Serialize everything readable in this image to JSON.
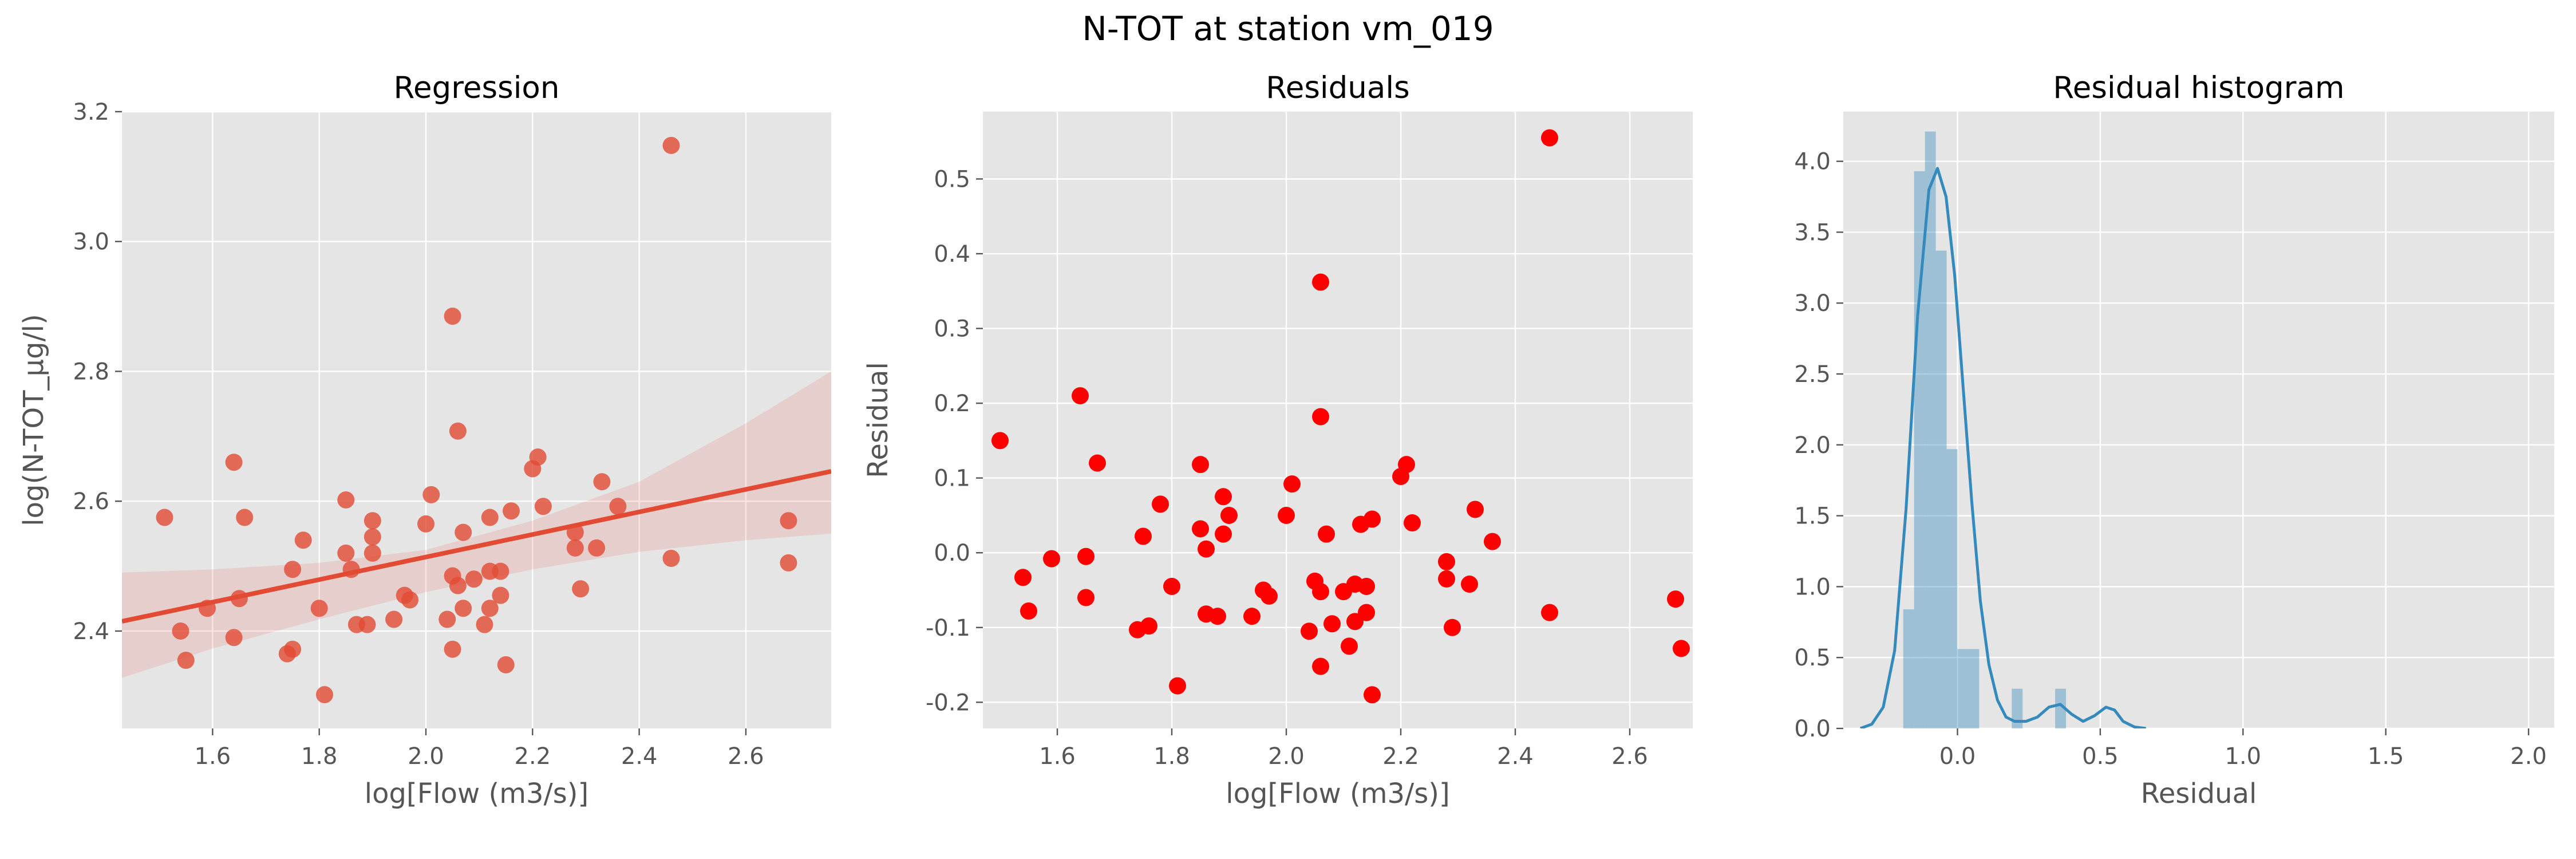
{
  "figure": {
    "title": "N-TOT at station vm_019"
  },
  "chart_data": [
    {
      "type": "scatter",
      "title": "Regression",
      "xlabel": "log[Flow (m3/s)]",
      "ylabel": "log(N-TOT_µg/l)",
      "xlim": [
        1.43,
        2.76
      ],
      "ylim": [
        2.25,
        3.2
      ],
      "xticks": [
        1.6,
        1.8,
        2.0,
        2.2,
        2.4,
        2.6
      ],
      "yticks": [
        2.4,
        2.6,
        2.8,
        3.0,
        3.2
      ],
      "grid": true,
      "colors": {
        "points": "#e24a33",
        "line": "#e24a33",
        "band": "#e24a33",
        "background": "#e5e5e5"
      },
      "regression_line": {
        "x": [
          1.43,
          2.76
        ],
        "y": [
          2.415,
          2.646
        ]
      },
      "confidence_band": {
        "x": [
          1.43,
          1.6,
          1.8,
          2.0,
          2.2,
          2.4,
          2.6,
          2.76
        ],
        "lower": [
          2.328,
          2.373,
          2.418,
          2.46,
          2.495,
          2.522,
          2.54,
          2.55
        ],
        "upper": [
          2.49,
          2.495,
          2.505,
          2.525,
          2.57,
          2.63,
          2.72,
          2.8
        ]
      },
      "points": [
        {
          "x": 1.51,
          "y": 2.575
        },
        {
          "x": 1.54,
          "y": 2.4
        },
        {
          "x": 1.55,
          "y": 2.355
        },
        {
          "x": 1.59,
          "y": 2.435
        },
        {
          "x": 1.64,
          "y": 2.66
        },
        {
          "x": 1.64,
          "y": 2.39
        },
        {
          "x": 1.66,
          "y": 2.575
        },
        {
          "x": 1.65,
          "y": 2.45
        },
        {
          "x": 1.74,
          "y": 2.365
        },
        {
          "x": 1.75,
          "y": 2.495
        },
        {
          "x": 1.75,
          "y": 2.372
        },
        {
          "x": 1.77,
          "y": 2.54
        },
        {
          "x": 1.8,
          "y": 2.435
        },
        {
          "x": 1.81,
          "y": 2.302
        },
        {
          "x": 1.85,
          "y": 2.52
        },
        {
          "x": 1.85,
          "y": 2.602
        },
        {
          "x": 1.86,
          "y": 2.495
        },
        {
          "x": 1.87,
          "y": 2.41
        },
        {
          "x": 1.89,
          "y": 2.41
        },
        {
          "x": 1.9,
          "y": 2.52
        },
        {
          "x": 1.9,
          "y": 2.545
        },
        {
          "x": 1.9,
          "y": 2.57
        },
        {
          "x": 1.94,
          "y": 2.418
        },
        {
          "x": 1.96,
          "y": 2.455
        },
        {
          "x": 1.97,
          "y": 2.448
        },
        {
          "x": 2.0,
          "y": 2.565
        },
        {
          "x": 2.01,
          "y": 2.61
        },
        {
          "x": 2.04,
          "y": 2.418
        },
        {
          "x": 2.05,
          "y": 2.372
        },
        {
          "x": 2.05,
          "y": 2.485
        },
        {
          "x": 2.06,
          "y": 2.47
        },
        {
          "x": 2.05,
          "y": 2.885
        },
        {
          "x": 2.06,
          "y": 2.708
        },
        {
          "x": 2.07,
          "y": 2.552
        },
        {
          "x": 2.07,
          "y": 2.435
        },
        {
          "x": 2.09,
          "y": 2.48
        },
        {
          "x": 2.11,
          "y": 2.41
        },
        {
          "x": 2.12,
          "y": 2.435
        },
        {
          "x": 2.12,
          "y": 2.492
        },
        {
          "x": 2.12,
          "y": 2.575
        },
        {
          "x": 2.14,
          "y": 2.455
        },
        {
          "x": 2.14,
          "y": 2.492
        },
        {
          "x": 2.15,
          "y": 2.348
        },
        {
          "x": 2.16,
          "y": 2.585
        },
        {
          "x": 2.2,
          "y": 2.65
        },
        {
          "x": 2.21,
          "y": 2.668
        },
        {
          "x": 2.22,
          "y": 2.592
        },
        {
          "x": 2.28,
          "y": 2.528
        },
        {
          "x": 2.28,
          "y": 2.552
        },
        {
          "x": 2.29,
          "y": 2.465
        },
        {
          "x": 2.32,
          "y": 2.528
        },
        {
          "x": 2.33,
          "y": 2.63
        },
        {
          "x": 2.36,
          "y": 2.592
        },
        {
          "x": 2.46,
          "y": 3.148
        },
        {
          "x": 2.46,
          "y": 2.512
        },
        {
          "x": 2.68,
          "y": 2.57
        },
        {
          "x": 2.68,
          "y": 2.505
        }
      ]
    },
    {
      "type": "scatter",
      "title": "Residuals",
      "xlabel": "log[Flow (m3/s)]",
      "ylabel": "Residual",
      "xlim": [
        1.47,
        2.71
      ],
      "ylim": [
        -0.235,
        0.59
      ],
      "xticks": [
        1.6,
        1.8,
        2.0,
        2.2,
        2.4,
        2.6
      ],
      "yticks": [
        -0.2,
        -0.1,
        0.0,
        0.1,
        0.2,
        0.3,
        0.4,
        0.5
      ],
      "grid": true,
      "colors": {
        "points": "#ff0000",
        "background": "#e5e5e5"
      },
      "points": [
        {
          "x": 1.5,
          "y": 0.15
        },
        {
          "x": 1.54,
          "y": -0.033
        },
        {
          "x": 1.55,
          "y": -0.078
        },
        {
          "x": 1.59,
          "y": -0.008
        },
        {
          "x": 1.64,
          "y": 0.21
        },
        {
          "x": 1.65,
          "y": -0.06
        },
        {
          "x": 1.65,
          "y": -0.005
        },
        {
          "x": 1.67,
          "y": 0.12
        },
        {
          "x": 1.74,
          "y": -0.103
        },
        {
          "x": 1.75,
          "y": 0.022
        },
        {
          "x": 1.76,
          "y": -0.098
        },
        {
          "x": 1.78,
          "y": 0.065
        },
        {
          "x": 1.8,
          "y": -0.045
        },
        {
          "x": 1.81,
          "y": -0.178
        },
        {
          "x": 1.85,
          "y": 0.118
        },
        {
          "x": 1.85,
          "y": 0.032
        },
        {
          "x": 1.86,
          "y": 0.005
        },
        {
          "x": 1.86,
          "y": -0.082
        },
        {
          "x": 1.88,
          "y": -0.085
        },
        {
          "x": 1.89,
          "y": 0.075
        },
        {
          "x": 1.89,
          "y": 0.025
        },
        {
          "x": 1.9,
          "y": 0.05
        },
        {
          "x": 1.94,
          "y": -0.085
        },
        {
          "x": 1.96,
          "y": -0.05
        },
        {
          "x": 1.97,
          "y": -0.058
        },
        {
          "x": 2.0,
          "y": 0.05
        },
        {
          "x": 2.01,
          "y": 0.092
        },
        {
          "x": 2.04,
          "y": -0.105
        },
        {
          "x": 2.05,
          "y": -0.038
        },
        {
          "x": 2.06,
          "y": -0.052
        },
        {
          "x": 2.06,
          "y": 0.362
        },
        {
          "x": 2.06,
          "y": 0.182
        },
        {
          "x": 2.06,
          "y": -0.152
        },
        {
          "x": 2.07,
          "y": 0.025
        },
        {
          "x": 2.08,
          "y": -0.095
        },
        {
          "x": 2.1,
          "y": -0.052
        },
        {
          "x": 2.11,
          "y": -0.125
        },
        {
          "x": 2.12,
          "y": -0.092
        },
        {
          "x": 2.12,
          "y": -0.042
        },
        {
          "x": 2.13,
          "y": 0.038
        },
        {
          "x": 2.14,
          "y": -0.08
        },
        {
          "x": 2.14,
          "y": -0.045
        },
        {
          "x": 2.15,
          "y": -0.19
        },
        {
          "x": 2.15,
          "y": 0.045
        },
        {
          "x": 2.2,
          "y": 0.102
        },
        {
          "x": 2.21,
          "y": 0.118
        },
        {
          "x": 2.22,
          "y": 0.04
        },
        {
          "x": 2.28,
          "y": -0.035
        },
        {
          "x": 2.28,
          "y": -0.012
        },
        {
          "x": 2.29,
          "y": -0.1
        },
        {
          "x": 2.32,
          "y": -0.042
        },
        {
          "x": 2.33,
          "y": 0.058
        },
        {
          "x": 2.36,
          "y": 0.015
        },
        {
          "x": 2.46,
          "y": 0.555
        },
        {
          "x": 2.46,
          "y": -0.08
        },
        {
          "x": 2.68,
          "y": -0.062
        },
        {
          "x": 2.69,
          "y": -0.128
        }
      ]
    },
    {
      "type": "bar",
      "subtype": "histogram_with_kde",
      "title": "Residual histogram",
      "xlabel": "Residual",
      "ylabel": "",
      "xlim": [
        -0.4,
        2.09
      ],
      "ylim": [
        0,
        4.35
      ],
      "xticks": [
        0.0,
        0.5,
        1.0,
        1.5,
        2.0
      ],
      "yticks": [
        0.0,
        0.5,
        1.0,
        1.5,
        2.0,
        2.5,
        3.0,
        3.5,
        4.0
      ],
      "grid": true,
      "colors": {
        "bars": "#348abd",
        "kde": "#348abd",
        "background": "#e5e5e5"
      },
      "bin_edges": [
        -0.19,
        -0.152,
        -0.114,
        -0.076,
        -0.038,
        0.0,
        0.038,
        0.076,
        0.114,
        0.152,
        0.19,
        0.228,
        0.266,
        0.304,
        0.342,
        0.38,
        0.418,
        0.456,
        0.494,
        0.532,
        0.57
      ],
      "values": [
        0.84,
        3.93,
        4.21,
        3.37,
        1.97,
        0.56,
        0.56,
        0.0,
        0.0,
        0.0,
        0.28,
        0.0,
        0.0,
        0.0,
        0.28,
        0.0,
        0.0,
        0.0,
        0.0,
        0.0
      ],
      "kde": {
        "x": [
          -0.34,
          -0.3,
          -0.26,
          -0.22,
          -0.18,
          -0.14,
          -0.1,
          -0.07,
          -0.04,
          -0.01,
          0.02,
          0.05,
          0.08,
          0.11,
          0.14,
          0.17,
          0.2,
          0.24,
          0.28,
          0.32,
          0.36,
          0.4,
          0.44,
          0.48,
          0.52,
          0.55,
          0.58,
          0.62,
          0.66
        ],
        "y": [
          0.0,
          0.03,
          0.15,
          0.55,
          1.55,
          2.9,
          3.8,
          3.95,
          3.75,
          3.2,
          2.4,
          1.6,
          0.9,
          0.45,
          0.2,
          0.08,
          0.05,
          0.05,
          0.08,
          0.15,
          0.17,
          0.1,
          0.05,
          0.09,
          0.15,
          0.13,
          0.05,
          0.01,
          0.0
        ]
      }
    }
  ]
}
